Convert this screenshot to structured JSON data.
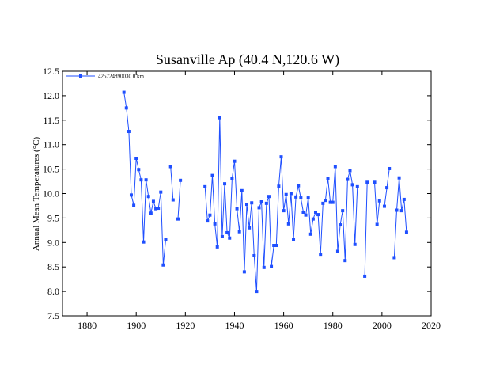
{
  "chart_data": {
    "type": "line",
    "title": "Susanville Ap (40.4 N,120.6 W)",
    "xlabel": "",
    "ylabel": "Annual Mean Temperatures (°C)",
    "xlim": [
      1870,
      2020
    ],
    "ylim": [
      7.5,
      12.5
    ],
    "xticks": [
      1880,
      1900,
      1920,
      1940,
      1960,
      1980,
      2000,
      2020
    ],
    "yticks": [
      7.5,
      8.0,
      8.5,
      9.0,
      9.5,
      10.0,
      10.5,
      11.0,
      11.5,
      12.0,
      12.5
    ],
    "xtick_labels": [
      "1880",
      "1900",
      "1920",
      "1940",
      "1960",
      "1980",
      "2000",
      "2020"
    ],
    "ytick_labels": [
      "7.5",
      "8.0",
      "8.5",
      "9.0",
      "9.5",
      "10.0",
      "10.5",
      "11.0",
      "11.5",
      "12.0",
      "12.5"
    ],
    "grid": false,
    "legend_position": "top-left",
    "color": "#1f4fff",
    "series": [
      {
        "name": "425724890030  0 km",
        "segments": [
          [
            [
              1895,
              12.07
            ],
            [
              1896,
              11.75
            ],
            [
              1897,
              11.27
            ],
            [
              1898,
              9.97
            ],
            [
              1899,
              9.76
            ],
            [
              1900,
              10.72
            ],
            [
              1901,
              10.49
            ],
            [
              1902,
              10.28
            ],
            [
              1903,
              9.01
            ],
            [
              1904,
              10.28
            ],
            [
              1905,
              9.94
            ],
            [
              1906,
              9.6
            ],
            [
              1907,
              9.84
            ],
            [
              1908,
              9.69
            ],
            [
              1909,
              9.7
            ],
            [
              1910,
              10.03
            ],
            [
              1911,
              8.54
            ],
            [
              1912,
              9.06
            ]
          ],
          [
            [
              1914,
              10.55
            ],
            [
              1915,
              9.87
            ]
          ],
          [
            [
              1917,
              9.48
            ],
            [
              1918,
              10.27
            ]
          ],
          [
            [
              1928,
              10.14
            ],
            [
              1929,
              9.44
            ],
            [
              1930,
              9.56
            ],
            [
              1931,
              10.37
            ],
            [
              1932,
              9.38
            ],
            [
              1933,
              8.91
            ],
            [
              1934,
              11.55
            ],
            [
              1935,
              9.12
            ],
            [
              1936,
              10.2
            ],
            [
              1937,
              9.2
            ],
            [
              1938,
              9.09
            ],
            [
              1939,
              10.31
            ],
            [
              1940,
              10.66
            ],
            [
              1941,
              9.69
            ],
            [
              1942,
              9.22
            ],
            [
              1943,
              10.06
            ],
            [
              1944,
              8.4
            ],
            [
              1945,
              9.78
            ],
            [
              1946,
              9.3
            ],
            [
              1947,
              9.81
            ],
            [
              1948,
              8.73
            ],
            [
              1949,
              8.0
            ],
            [
              1950,
              9.71
            ],
            [
              1951,
              9.83
            ],
            [
              1952,
              8.49
            ],
            [
              1953,
              9.8
            ],
            [
              1954,
              9.94
            ],
            [
              1955,
              8.51
            ],
            [
              1956,
              8.94
            ],
            [
              1957,
              8.94
            ],
            [
              1958,
              10.15
            ],
            [
              1959,
              10.75
            ],
            [
              1960,
              9.65
            ],
            [
              1961,
              9.98
            ],
            [
              1962,
              9.38
            ],
            [
              1963,
              10.0
            ],
            [
              1964,
              9.06
            ],
            [
              1965,
              9.93
            ],
            [
              1966,
              10.16
            ],
            [
              1967,
              9.91
            ],
            [
              1968,
              9.62
            ],
            [
              1969,
              9.56
            ],
            [
              1970,
              9.91
            ],
            [
              1971,
              9.17
            ],
            [
              1972,
              9.48
            ],
            [
              1973,
              9.62
            ],
            [
              1974,
              9.57
            ],
            [
              1975,
              8.76
            ],
            [
              1976,
              9.8
            ],
            [
              1977,
              9.86
            ],
            [
              1978,
              10.31
            ],
            [
              1979,
              9.82
            ],
            [
              1980,
              9.82
            ],
            [
              1981,
              10.55
            ],
            [
              1982,
              8.82
            ],
            [
              1983,
              9.36
            ],
            [
              1984,
              9.65
            ],
            [
              1985,
              8.63
            ],
            [
              1986,
              10.29
            ],
            [
              1987,
              10.47
            ],
            [
              1988,
              10.18
            ],
            [
              1989,
              8.96
            ],
            [
              1990,
              10.14
            ]
          ],
          [
            [
              1993,
              8.31
            ],
            [
              1994,
              10.23
            ]
          ],
          [
            [
              1997,
              10.23
            ],
            [
              1998,
              9.37
            ],
            [
              1999,
              9.85
            ]
          ],
          [
            [
              2001,
              9.74
            ],
            [
              2002,
              10.12
            ],
            [
              2003,
              10.51
            ]
          ],
          [
            [
              2005,
              8.69
            ],
            [
              2006,
              9.66
            ],
            [
              2007,
              10.32
            ],
            [
              2008,
              9.65
            ],
            [
              2009,
              9.88
            ],
            [
              2010,
              9.21
            ]
          ]
        ]
      }
    ]
  }
}
